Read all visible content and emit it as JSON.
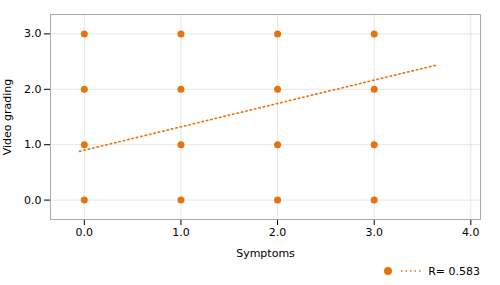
{
  "chart_data": {
    "type": "scatter",
    "xlabel": "Symptoms",
    "ylabel": "Video grading",
    "xlim": [
      -0.35,
      4.1
    ],
    "ylim": [
      -0.35,
      3.35
    ],
    "xticks": [
      0,
      1,
      2,
      3,
      4
    ],
    "yticks": [
      0,
      1,
      2,
      3
    ],
    "grid": true,
    "legend": "lower right",
    "series": [
      {
        "type": "scatter",
        "color": "#E8720C",
        "marker": "circle",
        "x": [
          0,
          0,
          0,
          0,
          1,
          1,
          1,
          1,
          2,
          2,
          2,
          2,
          3,
          3,
          3,
          3
        ],
        "y": [
          0,
          1,
          2,
          3,
          0,
          1,
          2,
          3,
          0,
          1,
          2,
          3,
          0,
          1,
          2,
          3
        ]
      },
      {
        "type": "line",
        "name": "R= 0.583",
        "color": "#E8720C",
        "line_style": "dotted",
        "x": [
          -0.05,
          3.65
        ],
        "y": [
          0.88,
          2.44
        ]
      }
    ]
  }
}
